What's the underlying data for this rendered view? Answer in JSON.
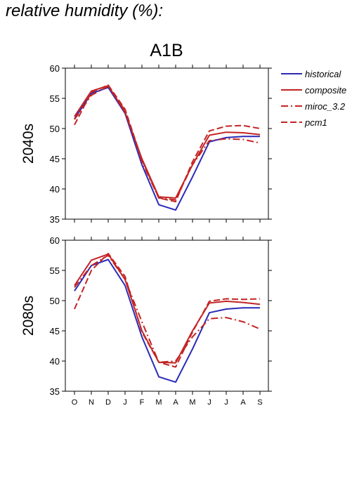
{
  "page": {
    "title": "relative humidity (%):"
  },
  "chart_data": {
    "type": "line",
    "title": "A1B",
    "categories": [
      "O",
      "N",
      "D",
      "J",
      "F",
      "M",
      "A",
      "M",
      "J",
      "J",
      "A",
      "S"
    ],
    "ylim": [
      35,
      60
    ],
    "yticks": [
      35,
      40,
      45,
      50,
      55,
      60
    ],
    "grid": false,
    "legend_position": "right",
    "legend": [
      "historical",
      "composite",
      "miroc_3.2",
      "pcm1"
    ],
    "series_styles": {
      "historical": {
        "color": "#2a2ab8",
        "dash": "solid"
      },
      "composite": {
        "color": "#c42424",
        "dash": "solid"
      },
      "miroc_3.2": {
        "color": "#c42424",
        "dash": "dashdot"
      },
      "pcm1": {
        "color": "#c42424",
        "dash": "dashed"
      }
    },
    "panels": [
      {
        "label": "2040s",
        "series": [
          {
            "name": "historical",
            "values": [
              51.6,
              55.8,
              56.8,
              52.5,
              44.0,
              37.4,
              36.5,
              42.0,
              47.8,
              48.5,
              48.7,
              48.7
            ]
          },
          {
            "name": "composite",
            "values": [
              52.0,
              56.2,
              57.1,
              52.7,
              45.0,
              38.7,
              38.5,
              44.0,
              48.9,
              49.4,
              49.3,
              49.0
            ]
          },
          {
            "name": "miroc_3.2",
            "values": [
              51.5,
              55.5,
              57.0,
              53.0,
              44.5,
              38.5,
              38.2,
              44.0,
              48.0,
              48.3,
              48.2,
              47.6
            ]
          },
          {
            "name": "pcm1",
            "values": [
              50.6,
              56.0,
              57.2,
              53.2,
              44.8,
              38.5,
              37.9,
              44.5,
              49.6,
              50.4,
              50.5,
              50.0
            ]
          }
        ]
      },
      {
        "label": "2080s",
        "series": [
          {
            "name": "historical",
            "values": [
              51.6,
              55.8,
              56.8,
              52.5,
              44.0,
              37.4,
              36.5,
              42.0,
              48.0,
              48.6,
              48.8,
              48.8
            ]
          },
          {
            "name": "composite",
            "values": [
              52.5,
              56.7,
              57.7,
              53.5,
              45.0,
              39.8,
              39.7,
              45.0,
              49.6,
              49.9,
              49.7,
              49.4
            ]
          },
          {
            "name": "miroc_3.2",
            "values": [
              52.2,
              55.8,
              57.5,
              53.5,
              46.5,
              39.8,
              40.0,
              44.0,
              47.0,
              47.2,
              46.5,
              45.3
            ]
          },
          {
            "name": "pcm1",
            "values": [
              48.6,
              55.0,
              57.8,
              54.0,
              44.8,
              39.8,
              39.0,
              44.8,
              49.9,
              50.3,
              50.2,
              50.3
            ]
          }
        ]
      }
    ]
  }
}
